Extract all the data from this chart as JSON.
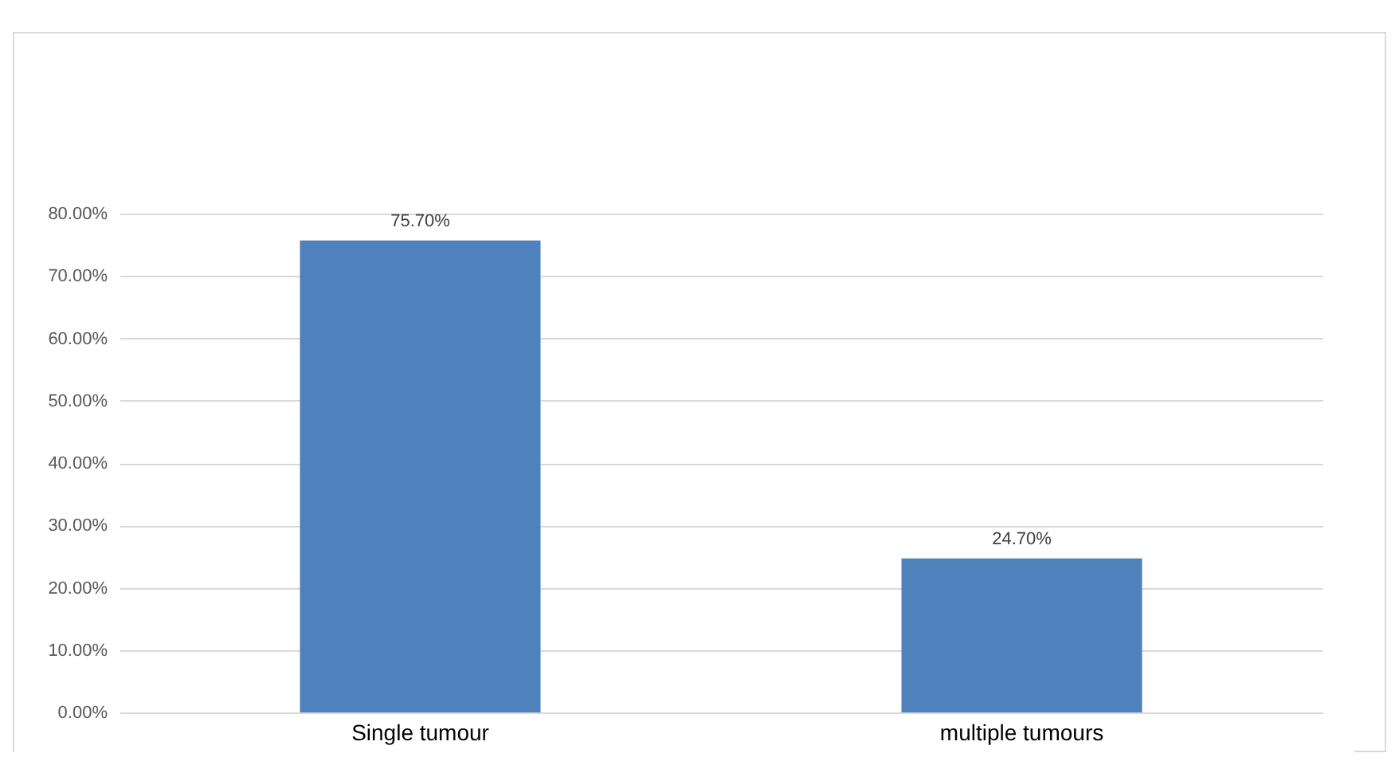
{
  "chart_data": {
    "type": "bar",
    "categories": [
      "Single tumour",
      "multiple tumours"
    ],
    "values": [
      75.7,
      24.7
    ],
    "value_labels": [
      "75.70%",
      "24.70%"
    ],
    "color": "#4f81bd",
    "ylim": [
      0,
      80
    ],
    "yticks": [
      {
        "value": 0,
        "label": "0.00%"
      },
      {
        "value": 10,
        "label": "10.00%"
      },
      {
        "value": 20,
        "label": "20.00%"
      },
      {
        "value": 30,
        "label": "30.00%"
      },
      {
        "value": 40,
        "label": "40.00%"
      },
      {
        "value": 50,
        "label": "50.00%"
      },
      {
        "value": 60,
        "label": "60.00%"
      },
      {
        "value": 70,
        "label": "70.00%"
      },
      {
        "value": 80,
        "label": "80.00%"
      }
    ],
    "grid": "y"
  }
}
